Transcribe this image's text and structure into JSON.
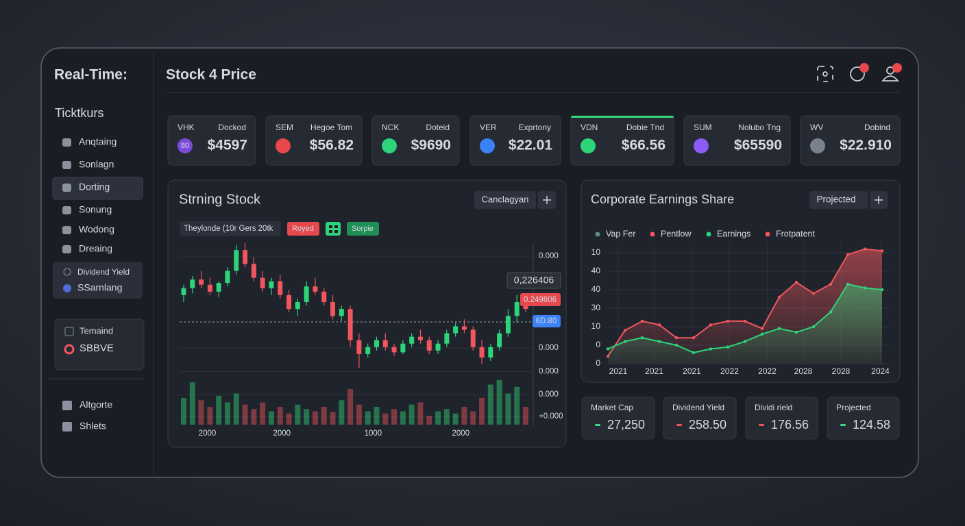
{
  "sidebar": {
    "title": "Real-Time:",
    "heading": "Ticktkurs",
    "nav": [
      "Anqtaing",
      "Sonlagn",
      "Dorting",
      "Sonung",
      "Wodong",
      "Dreaing"
    ],
    "group": [
      "Dividend Yield",
      "SSarnlang"
    ],
    "watch": [
      "Temaind",
      "SBBVE"
    ],
    "footer": [
      "Altgorte",
      "Shlets"
    ]
  },
  "header": {
    "title": "Stock 4 Price"
  },
  "tickers": [
    {
      "symbol": "VHK",
      "label": "Dockod",
      "value": "$4597",
      "icon": "80",
      "color": "#ffffff"
    },
    {
      "symbol": "SEM",
      "label": "Hegoe Tom",
      "value": "$56.82",
      "color": "#f0565e"
    },
    {
      "symbol": "NCK",
      "label": "Doteid",
      "value": "$9690",
      "color": "#3ddc84"
    },
    {
      "symbol": "VER",
      "label": "Exprtony",
      "value": "$22.01",
      "color": "#ffffff"
    },
    {
      "symbol": "VDN",
      "label": "Dobie Tnd",
      "value": "$66.56",
      "color": "#3ddc84",
      "active": true
    },
    {
      "symbol": "SUM",
      "label": "Nolubo Tng",
      "value": "$65590",
      "color": "#f0565e"
    },
    {
      "symbol": "WV",
      "label": "Dobind",
      "value": "$22.910",
      "color": "#3ddc84"
    }
  ],
  "candle_chart": {
    "type": "candlestick",
    "title": "Strning Stock",
    "button": "Canclagyan",
    "legend": "Theylonde (10r Gers 20tk",
    "tags": [
      "Royed",
      "Sorpie"
    ],
    "callouts": [
      "0,226406",
      "0.249806",
      "6D.80"
    ],
    "up_color": "#2ed47a",
    "down_color": "#f0565e",
    "open": [
      70,
      74,
      79,
      76,
      72,
      77,
      84,
      96,
      88,
      80,
      74,
      78,
      70,
      62,
      66,
      75,
      72,
      66,
      58,
      62,
      44,
      36,
      40,
      44,
      40,
      37,
      42,
      46,
      44,
      38,
      42,
      48,
      52,
      50,
      40,
      34,
      40,
      48,
      58,
      66
    ],
    "high": [
      76,
      81,
      84,
      80,
      78,
      86,
      99,
      100,
      92,
      84,
      80,
      82,
      73,
      68,
      78,
      80,
      74,
      70,
      64,
      64,
      48,
      42,
      46,
      48,
      42,
      44,
      48,
      50,
      46,
      44,
      50,
      54,
      56,
      52,
      44,
      42,
      50,
      62,
      70,
      68
    ],
    "low": [
      66,
      71,
      74,
      70,
      69,
      75,
      82,
      86,
      78,
      72,
      70,
      68,
      60,
      58,
      64,
      70,
      64,
      56,
      55,
      40,
      28,
      34,
      38,
      38,
      35,
      36,
      40,
      42,
      36,
      36,
      40,
      46,
      48,
      38,
      30,
      32,
      38,
      46,
      54,
      60
    ],
    "close": [
      74,
      79,
      76,
      72,
      77,
      84,
      96,
      88,
      80,
      74,
      78,
      70,
      62,
      66,
      75,
      72,
      66,
      58,
      62,
      44,
      36,
      40,
      44,
      40,
      37,
      42,
      46,
      44,
      38,
      42,
      48,
      52,
      50,
      40,
      34,
      40,
      48,
      58,
      66,
      62
    ],
    "volume": [
      60,
      95,
      55,
      40,
      65,
      50,
      70,
      45,
      35,
      50,
      30,
      40,
      25,
      45,
      35,
      30,
      40,
      28,
      55,
      80,
      45,
      30,
      40,
      25,
      35,
      30,
      45,
      50,
      20,
      30,
      35,
      25,
      40,
      30,
      60,
      90,
      100,
      70,
      85,
      40
    ],
    "volume_lim": [
      0,
      100
    ],
    "xlim": [
      0,
      39
    ],
    "xticks": [
      {
        "value": 2.7,
        "label": "2000"
      },
      {
        "value": 11.2,
        "label": "2000"
      },
      {
        "value": 21.6,
        "label": "1000"
      },
      {
        "value": 31.6,
        "label": "2000"
      }
    ],
    "ylim": [
      0,
      100
    ],
    "yticks": [
      {
        "value": 92.5,
        "label": "0.000"
      },
      {
        "value": 39.5,
        "label": "0.000"
      },
      {
        "value": 26,
        "label": "0.000"
      },
      {
        "value": 12.6,
        "label": "0.000"
      },
      {
        "value": 0,
        "label": "+0.000"
      }
    ],
    "grid": true
  },
  "earnings_chart": {
    "type": "area",
    "title": "Corporate Earnings Share",
    "button": "Projected",
    "legend": [
      {
        "name": "Vap Fer",
        "color": "#5f8f7b"
      },
      {
        "name": "Pentlow",
        "color": "#f0565e"
      },
      {
        "name": "Earnings",
        "color": "#2ed47a"
      },
      {
        "name": "Frotpatent",
        "color": "#f0565e"
      }
    ],
    "x": [
      0,
      1,
      2,
      3,
      4,
      5,
      6,
      7,
      8,
      9,
      10,
      11,
      12,
      13,
      14,
      15,
      16
    ],
    "series": [
      {
        "color": "#f0565e",
        "values": [
          4,
          18,
          23,
          21,
          14,
          14,
          21,
          23,
          23,
          19,
          36,
          44,
          38,
          43,
          59,
          62,
          61
        ]
      },
      {
        "color": "#2ed47a",
        "values": [
          8,
          12,
          14,
          12,
          10,
          6,
          8,
          9,
          12,
          16,
          19,
          17,
          20,
          28,
          43,
          41,
          40
        ]
      }
    ],
    "xlim": [
      0,
      16
    ],
    "xticks": [
      {
        "value": 0.6,
        "label": "2021"
      },
      {
        "value": 2.7,
        "label": "2021"
      },
      {
        "value": 4.9,
        "label": "2021"
      },
      {
        "value": 7.1,
        "label": "2022"
      },
      {
        "value": 9.3,
        "label": "2022"
      },
      {
        "value": 11.4,
        "label": "2028"
      },
      {
        "value": 13.6,
        "label": "2028"
      },
      {
        "value": 15.9,
        "label": "2024"
      }
    ],
    "ylim": [
      0,
      65
    ],
    "yticks": [
      0,
      {
        "value": 10,
        "label": "0"
      },
      {
        "value": 20,
        "label": "10"
      },
      30,
      40,
      {
        "value": 50,
        "label": "40"
      },
      {
        "value": 60,
        "label": "10"
      }
    ],
    "grid": true
  },
  "stats": [
    {
      "label": "Market Cap",
      "value": "27,250",
      "color": "#3ddc84"
    },
    {
      "label": "Dividend Yield",
      "value": "258.50",
      "color": "#f0565e"
    },
    {
      "label": "Dividi rield",
      "value": "176.56",
      "color": "#f0565e"
    },
    {
      "label": "Projected",
      "value": "124.58",
      "color": "#3ddc84"
    }
  ]
}
